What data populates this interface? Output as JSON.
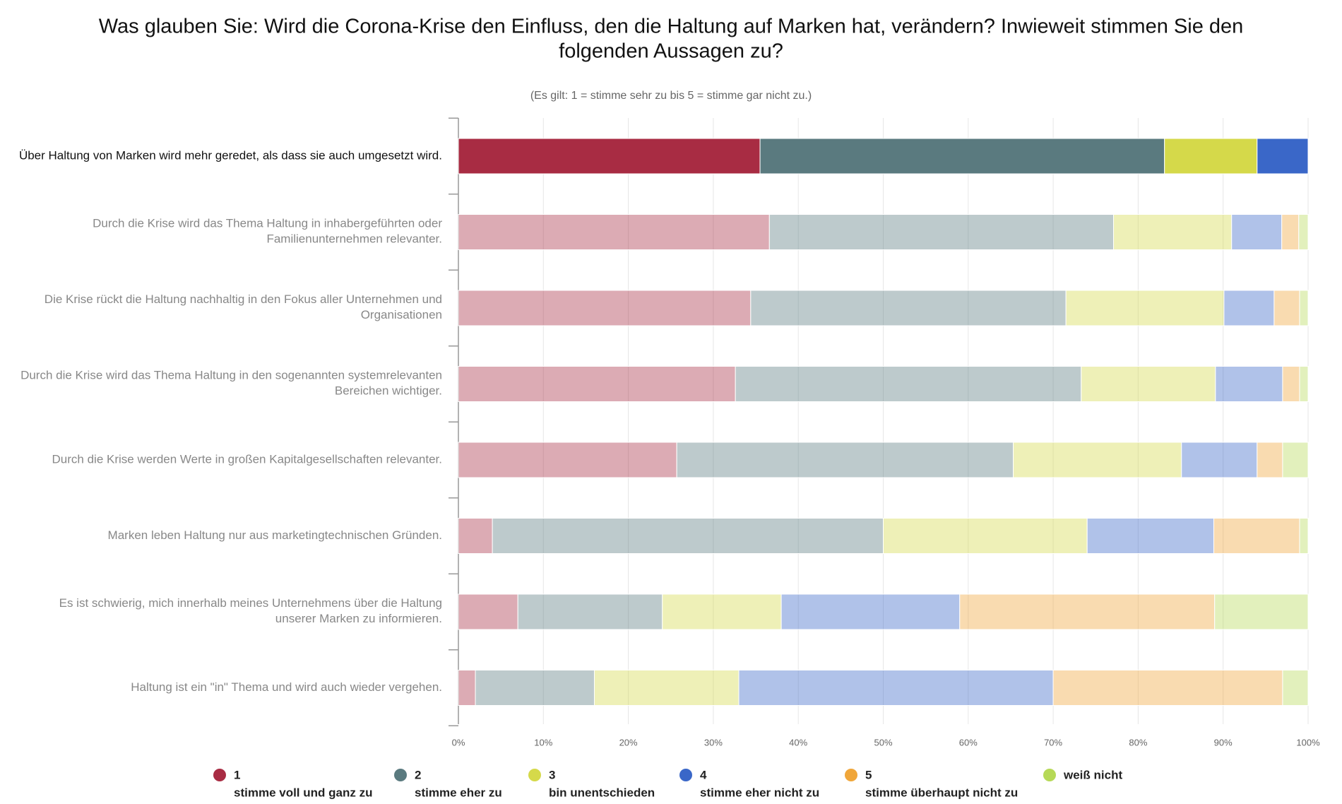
{
  "chart_data": {
    "type": "stacked_barh",
    "title": "Was glauben Sie: Wird die Corona-Krise den Einfluss, den die Haltung auf Marken hat, verändern? Inwieweit stimmen Sie den folgenden Aussagen zu?",
    "subtitle": "(Es gilt: 1 = stimme sehr zu bis 5 = stimme gar nicht zu.)",
    "categories": [
      "Über Haltung von Marken wird mehr geredet, als dass sie auch umgesetzt wird.",
      "Durch die Krise wird das Thema Haltung in inhabergeführten oder Familienunternehmen relevanter.",
      "Die Krise rückt die Haltung nachhaltig in den Fokus aller Unternehmen und Organisationen",
      "Durch die Krise wird das Thema Haltung in den sogenannten systemrelevanten Bereichen wichtiger.",
      "Durch die Krise werden Werte in großen Kapitalgesellschaften relevanter.",
      "Marken leben Haltung nur aus marketingtechnischen Gründen.",
      "Es ist schwierig, mich innerhalb meines Unternehmens über die Haltung unserer Marken zu informieren.",
      "Haltung ist ein \"in\" Thema und wird auch wieder vergehen."
    ],
    "series": [
      {
        "name": "1",
        "label": "stimme voll und ganz zu",
        "color": "#a82c43",
        "values": [
          35.5,
          36.6,
          34.4,
          32.6,
          25.7,
          4.0,
          7.0,
          2.0
        ]
      },
      {
        "name": "2",
        "label": "stimme eher zu",
        "color": "#5a7a7f",
        "values": [
          47.6,
          40.5,
          37.1,
          40.7,
          39.6,
          46.0,
          17.0,
          14.0
        ]
      },
      {
        "name": "3",
        "label": "bin unentschieden",
        "color": "#d5d94a",
        "values": [
          10.9,
          13.9,
          18.6,
          15.8,
          19.8,
          24.0,
          14.0,
          17.0
        ]
      },
      {
        "name": "4",
        "label": "stimme eher nicht zu",
        "color": "#3a67c8",
        "values": [
          6.0,
          5.9,
          5.9,
          7.9,
          8.9,
          14.9,
          21.0,
          37.0
        ]
      },
      {
        "name": "5",
        "label": "stimme überhaupt nicht zu",
        "color": "#f0a63a",
        "values": [
          0,
          2.0,
          3.0,
          2.0,
          3.0,
          10.1,
          30.0,
          27.0
        ]
      },
      {
        "name": "weiß nicht",
        "color": "#b6d957",
        "values": [
          0,
          1.1,
          1.0,
          1.0,
          3.0,
          1.0,
          11.0,
          3.0
        ]
      }
    ],
    "xlim": [
      0,
      100
    ],
    "xticks": [
      {
        "value": 0,
        "label": "0%"
      },
      {
        "value": 10,
        "label": "10%"
      },
      {
        "value": 20,
        "label": "20%"
      },
      {
        "value": 30,
        "label": "30%"
      },
      {
        "value": 40,
        "label": "40%"
      },
      {
        "value": 50,
        "label": "50%"
      },
      {
        "value": 60,
        "label": "60%"
      },
      {
        "value": 70,
        "label": "70%"
      },
      {
        "value": 80,
        "label": "80%"
      },
      {
        "value": 90,
        "label": "90%"
      },
      {
        "value": 100,
        "label": "100%"
      }
    ],
    "grid": true,
    "highlight_index": 0,
    "legend": "bottom"
  }
}
